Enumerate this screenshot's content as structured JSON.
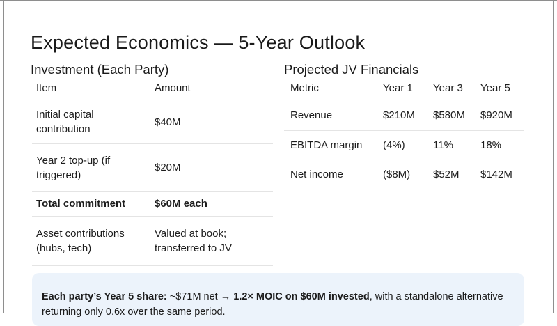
{
  "slide": {
    "title": "Expected Economics — 5-Year Outlook",
    "left_section": {
      "heading": "Investment (Each Party)",
      "table": {
        "headers": {
          "item": "Item",
          "amount": "Amount"
        },
        "rows": [
          {
            "item": "Initial capital contribution",
            "amount": "$40M",
            "bold": false
          },
          {
            "item": "Year 2 top-up (if triggered)",
            "amount": "$20M",
            "bold": false
          },
          {
            "item": "Total commitment",
            "amount": "$60M each",
            "bold": true
          },
          {
            "item": "Asset contributions (hubs, tech)",
            "amount": "Valued at book; transferred to JV",
            "bold": false
          }
        ]
      }
    },
    "right_section": {
      "heading": "Projected JV Financials",
      "table": {
        "headers": {
          "metric": "Metric",
          "year1": "Year 1",
          "year3": "Year 3",
          "year5": "Year 5"
        },
        "rows": [
          {
            "metric": "Revenue",
            "year1": "$210M",
            "year3": "$580M",
            "year5": "$920M"
          },
          {
            "metric": "EBITDA margin",
            "year1": "(4%)",
            "year3": "11%",
            "year5": "18%"
          },
          {
            "metric": "Net income",
            "year1": "($8M)",
            "year3": "$52M",
            "year5": "$142M"
          }
        ]
      }
    },
    "callout": {
      "bold_1": "Each party’s Year 5 share:",
      "regular_1": " ~$71M net ",
      "bold_2": "→ 1.2× MOIC on $60M invested",
      "regular_2": ", with a standalone alternative returning only 0.6x over the same period."
    },
    "colors": {
      "text": "#1c1c1c",
      "divider": "#e4e4e4",
      "callout_background": "#ecf3fb",
      "frame_border": "#8e8e8e",
      "slide_background": "#ffffff"
    }
  }
}
